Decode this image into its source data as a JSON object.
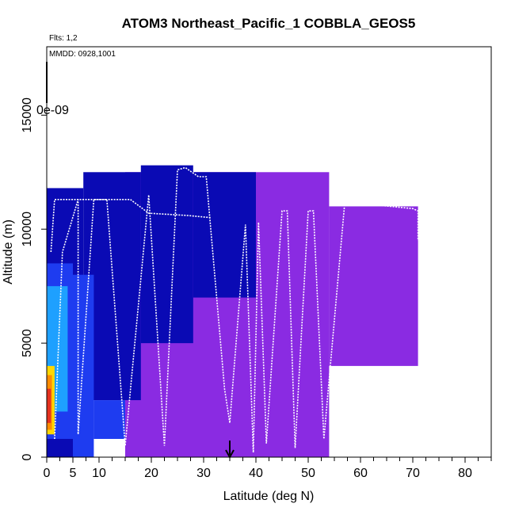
{
  "chart_data": {
    "type": "heatmap",
    "title": "ATOM3 Northeast_Pacific_1 COBBLA_GEOS5",
    "subtitle_flights": "Flts: 1,2",
    "subtitle_dates": "MMDD: 0928,1001",
    "colorbar_label": "0e-09",
    "xlabel": "Latitude (deg N)",
    "ylabel": "Altitude (m)",
    "xlim": [
      0,
      85
    ],
    "ylim": [
      0,
      18000
    ],
    "x_ticks": [
      "0",
      "5",
      "10",
      "20",
      "30",
      "40",
      "50",
      "60",
      "70",
      "80"
    ],
    "x_tick_values": [
      0,
      5,
      10,
      20,
      30,
      40,
      50,
      60,
      70,
      80
    ],
    "y_ticks": [
      "0",
      "5000",
      "10000",
      "15000"
    ],
    "y_tick_values": [
      0,
      5000,
      10000,
      15000
    ],
    "x_minor_ticks": [
      2.5,
      7.5,
      12.5,
      15,
      17.5,
      22.5,
      25,
      27.5,
      32.5,
      35,
      37.5,
      42.5,
      45,
      47.5,
      52.5,
      55,
      57.5,
      62.5,
      65,
      67.5,
      72.5,
      75,
      77.5,
      82.5,
      85
    ],
    "marker_latitude": 35,
    "colors": {
      "purple": "#8a2be2",
      "navy": "#0a0ab4",
      "blue": "#1e3cf0",
      "sky": "#1ea0ff",
      "yellow": "#ffd700",
      "orange": "#ff8c00",
      "red": "#e6321e",
      "flight_track": "#ffffff"
    },
    "field": [
      {
        "lat": [
          15,
          54
        ],
        "alt": [
          0,
          12500
        ],
        "level": "purple"
      },
      {
        "lat": [
          54,
          71
        ],
        "alt": [
          4000,
          11000
        ],
        "level": "purple"
      },
      {
        "lat": [
          7,
          18
        ],
        "alt": [
          2500,
          12500
        ],
        "level": "navy"
      },
      {
        "lat": [
          18,
          28
        ],
        "alt": [
          5000,
          12800
        ],
        "level": "navy"
      },
      {
        "lat": [
          28,
          40
        ],
        "alt": [
          7000,
          12500
        ],
        "level": "navy"
      },
      {
        "lat": [
          0,
          7
        ],
        "alt": [
          0,
          11800
        ],
        "level": "navy"
      },
      {
        "lat": [
          0,
          5
        ],
        "alt": [
          800,
          8500
        ],
        "level": "blue"
      },
      {
        "lat": [
          5,
          9
        ],
        "alt": [
          0,
          8000
        ],
        "level": "blue"
      },
      {
        "lat": [
          9,
          15
        ],
        "alt": [
          800,
          2500
        ],
        "level": "blue"
      },
      {
        "lat": [
          0,
          4
        ],
        "alt": [
          2000,
          7500
        ],
        "level": "sky"
      },
      {
        "lat": [
          0,
          1.5
        ],
        "alt": [
          1000,
          4000
        ],
        "level": "yellow"
      },
      {
        "lat": [
          0,
          1
        ],
        "alt": [
          1200,
          3600
        ],
        "level": "orange"
      },
      {
        "lat": [
          0,
          0.8
        ],
        "alt": [
          1500,
          3000
        ],
        "level": "red"
      }
    ],
    "flight_track": [
      [
        0.8,
        9000
      ],
      [
        1.5,
        11300
      ],
      [
        8,
        11300
      ],
      [
        11.5,
        11300
      ],
      [
        15,
        500
      ],
      [
        19.5,
        11500
      ],
      [
        22.5,
        500
      ],
      [
        25,
        12600
      ],
      [
        26.5,
        12700
      ],
      [
        29,
        12300
      ],
      [
        30.5,
        12300
      ],
      [
        34,
        3000
      ],
      [
        35,
        1500
      ],
      [
        38,
        10200
      ],
      [
        39.5,
        200
      ],
      [
        40.5,
        10300
      ],
      [
        42,
        600
      ],
      [
        45,
        10800
      ],
      [
        46,
        10800
      ],
      [
        47.5,
        400
      ],
      [
        50,
        10800
      ],
      [
        51,
        10800
      ],
      [
        53,
        800
      ],
      [
        57,
        11200
      ],
      [
        70,
        10900
      ],
      [
        71,
        10800
      ],
      [
        71,
        9500
      ]
    ],
    "flight_track_2": [
      [
        1.5,
        800
      ],
      [
        3,
        9000
      ],
      [
        6,
        11300
      ],
      [
        6,
        1000
      ],
      [
        9,
        11300
      ],
      [
        12,
        11300
      ],
      [
        16,
        11300
      ],
      [
        19.5,
        10700
      ],
      [
        27,
        10600
      ],
      [
        31.5,
        10500
      ]
    ]
  }
}
